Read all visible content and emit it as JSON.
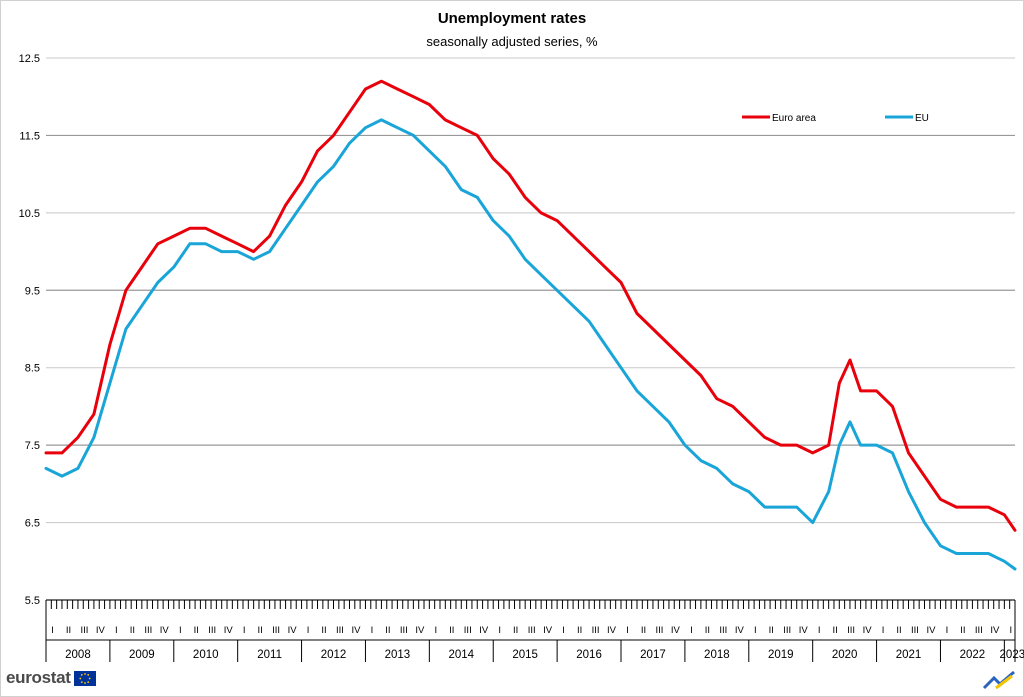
{
  "chart_data": {
    "type": "line",
    "title": "Unemployment rates",
    "subtitle": "seasonally adjusted series, %",
    "ylim": [
      5.5,
      12.5
    ],
    "yticks": [
      "12.5",
      "11.5",
      "10.5",
      "9.5",
      "8.5",
      "7.5",
      "6.5",
      "5.5"
    ],
    "grid": true,
    "legend_position": "top-right",
    "quarter_labels": [
      "I",
      "II",
      "III",
      "IV"
    ],
    "years": [
      "2008",
      "2009",
      "2010",
      "2011",
      "2012",
      "2013",
      "2014",
      "2015",
      "2016",
      "2017",
      "2018",
      "2019",
      "2020",
      "2021",
      "2022",
      "2023"
    ],
    "period": {
      "start": "2008-01",
      "end": "2023-03"
    },
    "series": [
      {
        "name": "Euro area",
        "color": "#e8000b",
        "points": [
          [
            "2008-01",
            7.4
          ],
          [
            "2008-04",
            7.4
          ],
          [
            "2008-07",
            7.6
          ],
          [
            "2008-10",
            7.9
          ],
          [
            "2009-01",
            8.8
          ],
          [
            "2009-04",
            9.5
          ],
          [
            "2009-07",
            9.8
          ],
          [
            "2009-10",
            10.1
          ],
          [
            "2010-01",
            10.2
          ],
          [
            "2010-04",
            10.3
          ],
          [
            "2010-07",
            10.3
          ],
          [
            "2010-10",
            10.2
          ],
          [
            "2011-01",
            10.1
          ],
          [
            "2011-04",
            10.0
          ],
          [
            "2011-07",
            10.2
          ],
          [
            "2011-10",
            10.6
          ],
          [
            "2012-01",
            10.9
          ],
          [
            "2012-04",
            11.3
          ],
          [
            "2012-07",
            11.5
          ],
          [
            "2012-10",
            11.8
          ],
          [
            "2013-01",
            12.1
          ],
          [
            "2013-04",
            12.2
          ],
          [
            "2013-07",
            12.1
          ],
          [
            "2013-10",
            12.0
          ],
          [
            "2014-01",
            11.9
          ],
          [
            "2014-04",
            11.7
          ],
          [
            "2014-07",
            11.6
          ],
          [
            "2014-10",
            11.5
          ],
          [
            "2015-01",
            11.2
          ],
          [
            "2015-04",
            11.0
          ],
          [
            "2015-07",
            10.7
          ],
          [
            "2015-10",
            10.5
          ],
          [
            "2016-01",
            10.4
          ],
          [
            "2016-04",
            10.2
          ],
          [
            "2016-07",
            10.0
          ],
          [
            "2016-10",
            9.8
          ],
          [
            "2017-01",
            9.6
          ],
          [
            "2017-04",
            9.2
          ],
          [
            "2017-07",
            9.0
          ],
          [
            "2017-10",
            8.8
          ],
          [
            "2018-01",
            8.6
          ],
          [
            "2018-04",
            8.4
          ],
          [
            "2018-07",
            8.1
          ],
          [
            "2018-10",
            8.0
          ],
          [
            "2019-01",
            7.8
          ],
          [
            "2019-04",
            7.6
          ],
          [
            "2019-07",
            7.5
          ],
          [
            "2019-10",
            7.5
          ],
          [
            "2020-01",
            7.4
          ],
          [
            "2020-04",
            7.5
          ],
          [
            "2020-06",
            8.3
          ],
          [
            "2020-08",
            8.6
          ],
          [
            "2020-10",
            8.2
          ],
          [
            "2021-01",
            8.2
          ],
          [
            "2021-04",
            8.0
          ],
          [
            "2021-07",
            7.4
          ],
          [
            "2021-10",
            7.1
          ],
          [
            "2022-01",
            6.8
          ],
          [
            "2022-04",
            6.7
          ],
          [
            "2022-07",
            6.7
          ],
          [
            "2022-10",
            6.7
          ],
          [
            "2023-01",
            6.6
          ],
          [
            "2023-03",
            6.4
          ]
        ]
      },
      {
        "name": "EU",
        "color": "#1aa5d8",
        "points": [
          [
            "2008-01",
            7.2
          ],
          [
            "2008-04",
            7.1
          ],
          [
            "2008-07",
            7.2
          ],
          [
            "2008-10",
            7.6
          ],
          [
            "2009-01",
            8.3
          ],
          [
            "2009-04",
            9.0
          ],
          [
            "2009-07",
            9.3
          ],
          [
            "2009-10",
            9.6
          ],
          [
            "2010-01",
            9.8
          ],
          [
            "2010-04",
            10.1
          ],
          [
            "2010-07",
            10.1
          ],
          [
            "2010-10",
            10.0
          ],
          [
            "2011-01",
            10.0
          ],
          [
            "2011-04",
            9.9
          ],
          [
            "2011-07",
            10.0
          ],
          [
            "2011-10",
            10.3
          ],
          [
            "2012-01",
            10.6
          ],
          [
            "2012-04",
            10.9
          ],
          [
            "2012-07",
            11.1
          ],
          [
            "2012-10",
            11.4
          ],
          [
            "2013-01",
            11.6
          ],
          [
            "2013-04",
            11.7
          ],
          [
            "2013-07",
            11.6
          ],
          [
            "2013-10",
            11.5
          ],
          [
            "2014-01",
            11.3
          ],
          [
            "2014-04",
            11.1
          ],
          [
            "2014-07",
            10.8
          ],
          [
            "2014-10",
            10.7
          ],
          [
            "2015-01",
            10.4
          ],
          [
            "2015-04",
            10.2
          ],
          [
            "2015-07",
            9.9
          ],
          [
            "2015-10",
            9.7
          ],
          [
            "2016-01",
            9.5
          ],
          [
            "2016-04",
            9.3
          ],
          [
            "2016-07",
            9.1
          ],
          [
            "2016-10",
            8.8
          ],
          [
            "2017-01",
            8.5
          ],
          [
            "2017-04",
            8.2
          ],
          [
            "2017-07",
            8.0
          ],
          [
            "2017-10",
            7.8
          ],
          [
            "2018-01",
            7.5
          ],
          [
            "2018-04",
            7.3
          ],
          [
            "2018-07",
            7.2
          ],
          [
            "2018-10",
            7.0
          ],
          [
            "2019-01",
            6.9
          ],
          [
            "2019-04",
            6.7
          ],
          [
            "2019-07",
            6.7
          ],
          [
            "2019-10",
            6.7
          ],
          [
            "2020-01",
            6.5
          ],
          [
            "2020-04",
            6.9
          ],
          [
            "2020-06",
            7.5
          ],
          [
            "2020-08",
            7.8
          ],
          [
            "2020-10",
            7.5
          ],
          [
            "2021-01",
            7.5
          ],
          [
            "2021-04",
            7.4
          ],
          [
            "2021-07",
            6.9
          ],
          [
            "2021-10",
            6.5
          ],
          [
            "2022-01",
            6.2
          ],
          [
            "2022-04",
            6.1
          ],
          [
            "2022-07",
            6.1
          ],
          [
            "2022-10",
            6.1
          ],
          [
            "2023-01",
            6.0
          ],
          [
            "2023-03",
            5.9
          ]
        ]
      }
    ]
  },
  "branding": {
    "logo_text": "eurostat"
  }
}
